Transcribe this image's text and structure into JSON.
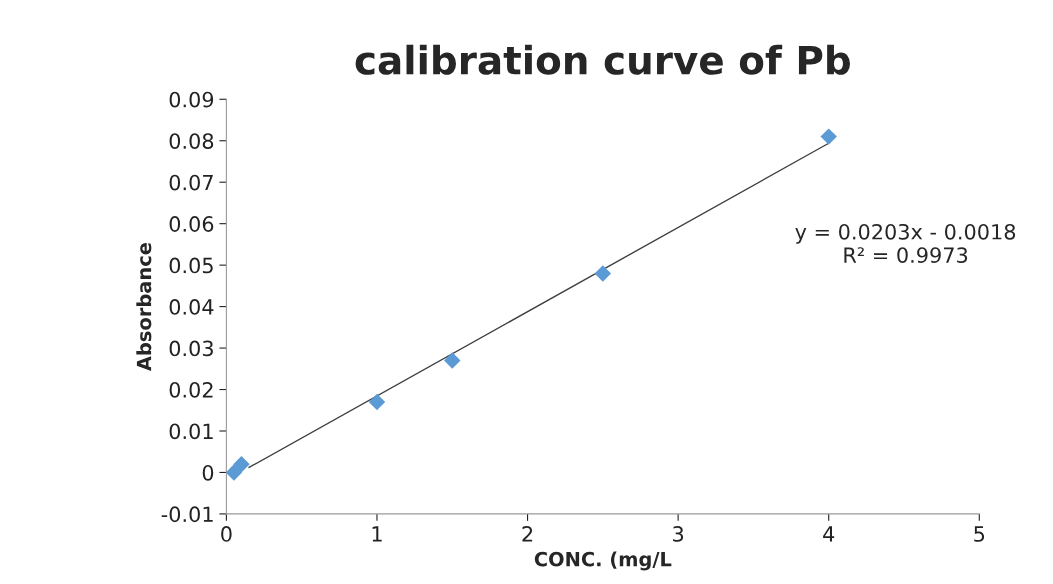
{
  "chart_data": {
    "type": "scatter",
    "title": "calibration curve of Pb",
    "xlabel": "CONC. (mg/L",
    "ylabel": "Absorbance",
    "series": [
      {
        "color": "#5b9bd5",
        "marker": "diamond",
        "x": [
          0.05,
          0.1,
          1,
          1.5,
          2.5,
          4
        ],
        "values": [
          0,
          0.002,
          0.017,
          0.027,
          0.048,
          0.081
        ]
      },
      {
        "type": "line",
        "color": "#404040",
        "marker": "none",
        "line_style": "solid",
        "x": [
          0.15,
          4
        ],
        "values": [
          0.0012,
          0.0794
        ]
      }
    ],
    "annotations": [
      "y = 0.0203x - 0.0018\nR² = 0.9973"
    ],
    "xlim": [
      0,
      5
    ],
    "xticks": [
      0,
      1,
      2,
      3,
      4,
      5
    ],
    "ylim": [
      -0.01,
      0.09
    ],
    "yticks": [
      -0.01,
      0,
      0.01,
      0.02,
      0.03,
      0.04,
      0.05,
      0.06,
      0.07,
      0.08,
      0.09
    ],
    "grid": false,
    "legend": false
  }
}
